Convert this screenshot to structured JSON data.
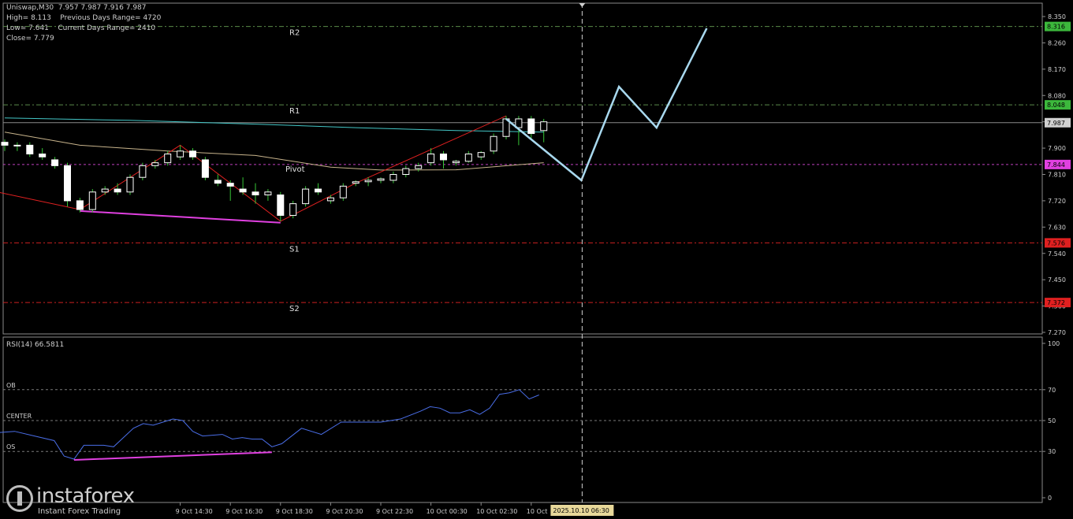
{
  "header": {
    "symbol_line": "Uniswap,M30  7.957 7.987 7.916 7.987",
    "stats_line1": "High= 8.113    Previous Days Range= 4720",
    "stats_line2": "Low= 7.641    Current Days Range= 2410",
    "stats_line3": "Close= 7.779"
  },
  "rsi_label": "RSI(14) 66.5811",
  "logo": {
    "name": "instaforex",
    "tagline": "Instant Forex Trading"
  },
  "colors": {
    "background": "#000000",
    "bull": "#ffffff",
    "bear_outline": "#ffffff",
    "wick": "#36c636",
    "ma_cyan": "#43c6c6",
    "ma_tan": "#c8b48c",
    "zigzag": "#e02020",
    "divergence": "#e040e0",
    "rsi": "#4a6ee8",
    "projection": "#a8d8ee",
    "pivot_line": "#c040c0",
    "resistance_line": "#5a8a4a",
    "support_line": "#cc2020"
  },
  "chart_data": [
    {
      "type": "candlestick",
      "symbol": "Uniswap",
      "timeframe": "M30",
      "ylim": [
        7.23,
        8.4
      ],
      "y_ticks": [
        "8.350",
        "8.260",
        "8.170",
        "8.080",
        "7.990",
        "7.900",
        "7.810",
        "7.720",
        "7.630",
        "7.540",
        "7.450",
        "7.360",
        "7.270"
      ],
      "x_ticks": [
        "9 Oct 14:30",
        "9 Oct 16:30",
        "9 Oct 18:30",
        "9 Oct 20:30",
        "9 Oct 22:30",
        "10 Oct 00:30",
        "10 Oct 02:30",
        "10 Oct"
      ],
      "x_tick_index": [
        14,
        18,
        22,
        26,
        30,
        34,
        38,
        42
      ],
      "cursor_label": "2025.10.10 06:30",
      "cursor_index": 46,
      "levels": [
        {
          "name": "R2",
          "value": 8.316,
          "label": "8.316",
          "color": "#5a8a4a",
          "label_bg": "#3cb83c",
          "label_fg": "#000000"
        },
        {
          "name": "R1",
          "value": 8.048,
          "label": "8.048",
          "color": "#5a8a4a",
          "label_bg": "#3cb83c",
          "label_fg": "#000000"
        },
        {
          "name": "",
          "value": 7.987,
          "label": "7.987",
          "color": "#8a8a8a",
          "label_bg": "#d0d0d0",
          "label_fg": "#000000"
        },
        {
          "name": "Pivot",
          "value": 7.844,
          "label": "7.844",
          "color": "#c040c0",
          "label_bg": "#e040e0",
          "label_fg": "#000000"
        },
        {
          "name": "S1",
          "value": 7.576,
          "label": "7.576",
          "color": "#cc2020",
          "label_bg": "#e02020",
          "label_fg": "#000000"
        },
        {
          "name": "S2",
          "value": 7.372,
          "label": "7.372",
          "color": "#cc2020",
          "label_bg": "#e02020",
          "label_fg": "#000000"
        }
      ],
      "candles": [
        {
          "o": 7.92,
          "h": 7.93,
          "l": 7.89,
          "c": 7.91
        },
        {
          "o": 7.91,
          "h": 7.92,
          "l": 7.89,
          "c": 7.91
        },
        {
          "o": 7.91,
          "h": 7.92,
          "l": 7.87,
          "c": 7.88
        },
        {
          "o": 7.88,
          "h": 7.9,
          "l": 7.86,
          "c": 7.87
        },
        {
          "o": 7.86,
          "h": 7.87,
          "l": 7.83,
          "c": 7.84
        },
        {
          "o": 7.84,
          "h": 7.85,
          "l": 7.7,
          "c": 7.72
        },
        {
          "o": 7.72,
          "h": 7.73,
          "l": 7.68,
          "c": 7.69
        },
        {
          "o": 7.69,
          "h": 7.76,
          "l": 7.68,
          "c": 7.75
        },
        {
          "o": 7.75,
          "h": 7.77,
          "l": 7.74,
          "c": 7.76
        },
        {
          "o": 7.76,
          "h": 7.78,
          "l": 7.74,
          "c": 7.75
        },
        {
          "o": 7.75,
          "h": 7.81,
          "l": 7.74,
          "c": 7.8
        },
        {
          "o": 7.8,
          "h": 7.85,
          "l": 7.79,
          "c": 7.84
        },
        {
          "o": 7.84,
          "h": 7.86,
          "l": 7.83,
          "c": 7.85
        },
        {
          "o": 7.85,
          "h": 7.89,
          "l": 7.84,
          "c": 7.88
        },
        {
          "o": 7.87,
          "h": 7.91,
          "l": 7.86,
          "c": 7.89
        },
        {
          "o": 7.89,
          "h": 7.9,
          "l": 7.86,
          "c": 7.87
        },
        {
          "o": 7.86,
          "h": 7.87,
          "l": 7.79,
          "c": 7.8
        },
        {
          "o": 7.79,
          "h": 7.81,
          "l": 7.77,
          "c": 7.78
        },
        {
          "o": 7.78,
          "h": 7.79,
          "l": 7.72,
          "c": 7.77
        },
        {
          "o": 7.76,
          "h": 7.8,
          "l": 7.74,
          "c": 7.75
        },
        {
          "o": 7.75,
          "h": 7.78,
          "l": 7.71,
          "c": 7.74
        },
        {
          "o": 7.74,
          "h": 7.76,
          "l": 7.72,
          "c": 7.75
        },
        {
          "o": 7.74,
          "h": 7.75,
          "l": 7.65,
          "c": 7.67
        },
        {
          "o": 7.67,
          "h": 7.72,
          "l": 7.66,
          "c": 7.71
        },
        {
          "o": 7.71,
          "h": 7.77,
          "l": 7.7,
          "c": 7.76
        },
        {
          "o": 7.76,
          "h": 7.78,
          "l": 7.74,
          "c": 7.75
        },
        {
          "o": 7.72,
          "h": 7.74,
          "l": 7.71,
          "c": 7.73
        },
        {
          "o": 7.73,
          "h": 7.78,
          "l": 7.72,
          "c": 7.77
        },
        {
          "o": 7.78,
          "h": 7.79,
          "l": 7.77,
          "c": 7.785
        },
        {
          "o": 7.785,
          "h": 7.8,
          "l": 7.77,
          "c": 7.79
        },
        {
          "o": 7.79,
          "h": 7.8,
          "l": 7.78,
          "c": 7.795
        },
        {
          "o": 7.79,
          "h": 7.82,
          "l": 7.78,
          "c": 7.81
        },
        {
          "o": 7.81,
          "h": 7.84,
          "l": 7.8,
          "c": 7.83
        },
        {
          "o": 7.83,
          "h": 7.85,
          "l": 7.82,
          "c": 7.84
        },
        {
          "o": 7.85,
          "h": 7.9,
          "l": 7.84,
          "c": 7.88
        },
        {
          "o": 7.88,
          "h": 7.89,
          "l": 7.83,
          "c": 7.86
        },
        {
          "o": 7.85,
          "h": 7.86,
          "l": 7.84,
          "c": 7.855
        },
        {
          "o": 7.855,
          "h": 7.89,
          "l": 7.85,
          "c": 7.88
        },
        {
          "o": 7.87,
          "h": 7.89,
          "l": 7.86,
          "c": 7.885
        },
        {
          "o": 7.89,
          "h": 7.95,
          "l": 7.88,
          "c": 7.94
        },
        {
          "o": 7.94,
          "h": 8.01,
          "l": 7.93,
          "c": 8.0
        },
        {
          "o": 7.97,
          "h": 8.01,
          "l": 7.91,
          "c": 8.0
        },
        {
          "o": 8.0,
          "h": 8.01,
          "l": 7.93,
          "c": 7.95
        },
        {
          "o": 7.96,
          "h": 8.0,
          "l": 7.92,
          "c": 7.99
        }
      ],
      "ma_cyan": [
        [
          0,
          8.003
        ],
        [
          10,
          7.995
        ],
        [
          20,
          7.982
        ],
        [
          28,
          7.97
        ],
        [
          36,
          7.96
        ],
        [
          43,
          7.955
        ]
      ],
      "ma_tan": [
        [
          0,
          7.955
        ],
        [
          6,
          7.91
        ],
        [
          13,
          7.89
        ],
        [
          20,
          7.875
        ],
        [
          26,
          7.835
        ],
        [
          30,
          7.825
        ],
        [
          36,
          7.826
        ],
        [
          43,
          7.85
        ]
      ],
      "zigzag": [
        [
          -5,
          7.79
        ],
        [
          6,
          7.69
        ],
        [
          14,
          7.91
        ],
        [
          22,
          7.65
        ],
        [
          28,
          7.78
        ],
        [
          40,
          8.01
        ]
      ],
      "divergence_price": [
        [
          6,
          7.685
        ],
        [
          22,
          7.645
        ]
      ],
      "projection": [
        [
          40,
          8.0
        ],
        [
          46,
          7.79
        ],
        [
          49,
          8.11
        ],
        [
          52,
          7.97
        ],
        [
          56,
          8.31
        ]
      ]
    },
    {
      "type": "line",
      "name": "RSI(14)",
      "value": 66.5811,
      "ylim": [
        0,
        100
      ],
      "y_ticks": [
        "100",
        "70",
        "50",
        "30",
        "0"
      ],
      "levels": [
        {
          "name": "OB",
          "value": 70
        },
        {
          "name": "CENTER",
          "value": 50
        },
        {
          "name": "OS",
          "value": 30
        }
      ],
      "values": [
        [
          -1,
          42
        ],
        [
          1,
          43
        ],
        [
          3,
          40
        ],
        [
          5,
          37
        ],
        [
          6,
          27
        ],
        [
          7,
          25
        ],
        [
          8,
          34
        ],
        [
          10,
          34
        ],
        [
          11,
          33
        ],
        [
          13,
          45
        ],
        [
          14,
          48
        ],
        [
          15,
          47
        ],
        [
          17,
          51
        ],
        [
          18,
          50
        ],
        [
          19,
          43
        ],
        [
          20,
          40
        ],
        [
          22,
          41
        ],
        [
          23,
          38
        ],
        [
          24,
          39
        ],
        [
          25,
          38
        ],
        [
          26,
          38
        ],
        [
          27,
          33
        ],
        [
          28,
          35
        ],
        [
          30,
          45
        ],
        [
          32,
          41
        ],
        [
          34,
          49
        ],
        [
          36,
          49
        ],
        [
          38,
          49
        ],
        [
          40,
          51
        ],
        [
          42,
          56
        ],
        [
          43,
          59
        ],
        [
          44,
          58
        ],
        [
          45,
          55
        ],
        [
          46,
          55
        ],
        [
          47,
          57
        ],
        [
          48,
          54
        ],
        [
          49,
          58
        ],
        [
          50,
          67
        ],
        [
          51,
          68
        ],
        [
          52,
          70
        ],
        [
          53,
          64
        ],
        [
          54,
          66.5811
        ]
      ],
      "divergence": [
        [
          7,
          24.5
        ],
        [
          27,
          29.5
        ]
      ]
    }
  ]
}
